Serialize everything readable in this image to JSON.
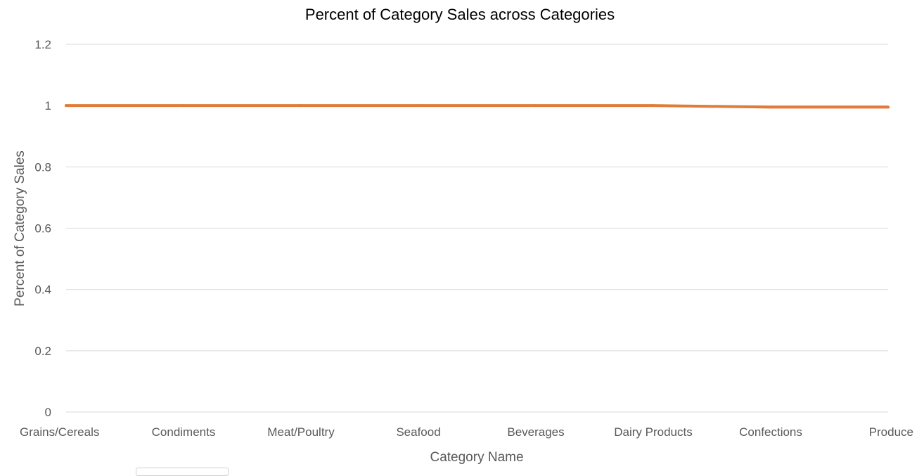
{
  "chart_data": {
    "type": "line",
    "title": "Percent of Category Sales across Categories",
    "xlabel": "Category Name",
    "ylabel": "Percent of Category Sales",
    "categories": [
      "Grains/Cereals",
      "Condiments",
      "Meat/Poultry",
      "Seafood",
      "Beverages",
      "Dairy Products",
      "Confections",
      "Produce"
    ],
    "series": [
      {
        "values": [
          1,
          1,
          1,
          1,
          1,
          1,
          0.995,
          0.995
        ]
      }
    ],
    "ylim": [
      0,
      1.2
    ],
    "yticks": [
      0,
      0.2,
      0.4,
      0.6,
      0.8,
      1,
      1.2
    ],
    "ytick_labels": [
      "0",
      "0.2",
      "0.4",
      "0.6",
      "0.8",
      "1",
      "1.2"
    ],
    "grid": true,
    "legend": "none",
    "colors": {
      "series": "#e07b39",
      "grid": "#d9d9d9"
    }
  }
}
